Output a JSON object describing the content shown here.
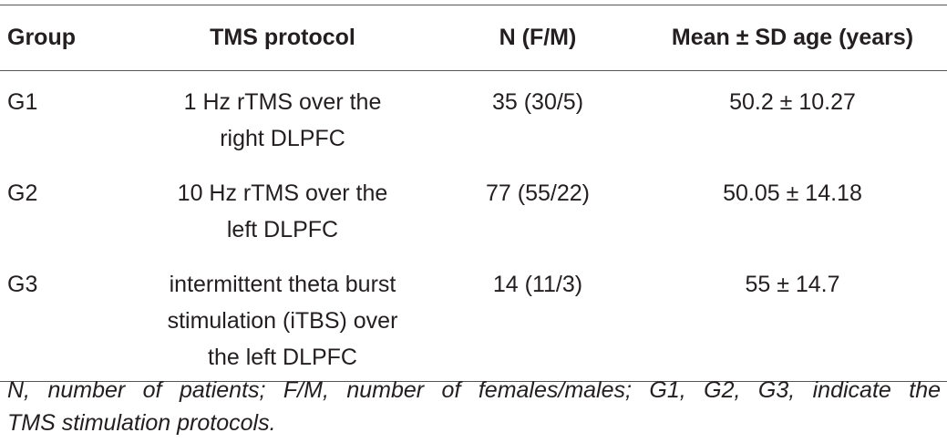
{
  "table": {
    "header": [
      "Group",
      "TMS protocol",
      "N (F/M)",
      "Mean ± SD age (years)"
    ],
    "rows": [
      [
        "G1",
        [
          "1 Hz rTMS over the",
          "right DLPFC"
        ],
        "35 (30/5)",
        "50.2 ± 10.27"
      ],
      [
        "G2",
        [
          "10 Hz rTMS over the",
          "left DLPFC"
        ],
        "77 (55/22)",
        "50.05 ± 14.18"
      ],
      [
        "G3",
        [
          "intermittent theta burst",
          "stimulation (iTBS) over",
          "the left DLPFC"
        ],
        "14 (11/3)",
        "55 ± 14.7"
      ]
    ]
  },
  "footnote": [
    "N, number of patients; F/M, number of females/males; G1, G2, G3, indicate the",
    "TMS stimulation protocols."
  ]
}
